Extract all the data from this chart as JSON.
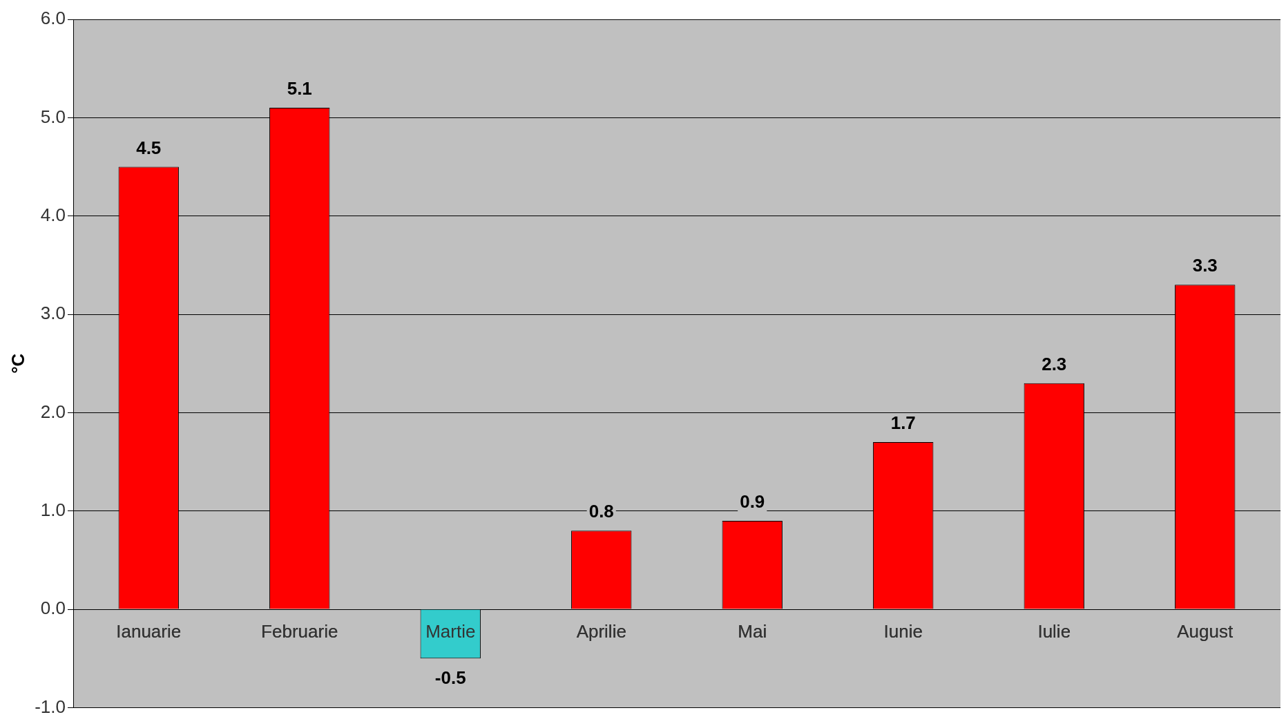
{
  "chart_data": {
    "type": "bar",
    "ylabel": "°C",
    "categories": [
      "Ianuarie",
      "Februarie",
      "Martie",
      "Aprilie",
      "Mai",
      "Iunie",
      "Iulie",
      "August"
    ],
    "values": [
      4.5,
      5.1,
      -0.5,
      0.8,
      0.9,
      1.7,
      2.3,
      3.3
    ],
    "colors": [
      "#ff0000",
      "#ff0000",
      "#33cccc",
      "#ff0000",
      "#ff0000",
      "#ff0000",
      "#ff0000",
      "#ff0000"
    ],
    "ylim": [
      -1,
      6
    ],
    "yticks": [
      {
        "value": -1,
        "label": "-1.0"
      },
      {
        "value": 0,
        "label": "0.0"
      },
      {
        "value": 1,
        "label": "1.0"
      },
      {
        "value": 2,
        "label": "2.0"
      },
      {
        "value": 3,
        "label": "3.0"
      },
      {
        "value": 4,
        "label": "4.0"
      },
      {
        "value": 5,
        "label": "5.0"
      },
      {
        "value": 6,
        "label": "6.0"
      }
    ],
    "grid": "y",
    "data_labels": true,
    "legend": false
  }
}
